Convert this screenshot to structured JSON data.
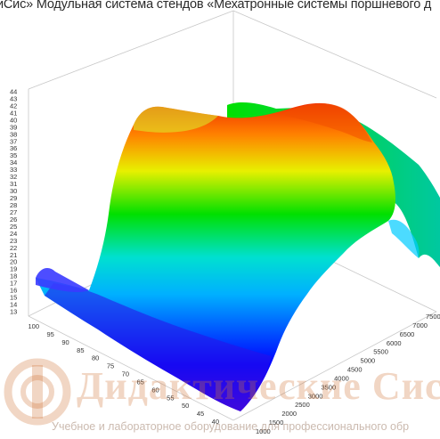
{
  "header": {
    "text": "иСис» Модульная система стендов «Мехатронные системы поршневого д"
  },
  "watermark": {
    "company": "Дидактические Систе",
    "tagline": "Учебное и лабораторное оборудование для профессионального обр"
  },
  "chart_data": {
    "type": "surface3d",
    "title": "",
    "zlim": [
      13,
      44
    ],
    "z_ticks": [
      13,
      14,
      15,
      16,
      17,
      18,
      19,
      20,
      21,
      22,
      23,
      24,
      25,
      26,
      27,
      28,
      29,
      30,
      31,
      32,
      33,
      34,
      35,
      36,
      37,
      38,
      39,
      40,
      41,
      42,
      43,
      44
    ],
    "x_ticks": [
      100,
      95,
      90,
      85,
      80,
      75,
      70,
      65,
      60,
      55,
      50,
      45,
      40
    ],
    "y_ticks": [
      1000,
      1500,
      2000,
      2500,
      3000,
      3500,
      4000,
      4500,
      5000,
      5500,
      6000,
      6500,
      7000,
      7500
    ],
    "colormap": [
      "#5a00d0",
      "#0000ff",
      "#00b0ff",
      "#00e0d0",
      "#00e000",
      "#e8f000",
      "#ff8000",
      "#f03000"
    ],
    "x_axis_values": [
      100,
      90,
      80,
      70,
      60,
      50,
      40
    ],
    "y_axis_values": [
      1000,
      2000,
      3000,
      4000,
      5000,
      6000,
      7000
    ],
    "z_values": [
      [
        18,
        26,
        34,
        40,
        41,
        40,
        36
      ],
      [
        17,
        23,
        31,
        38,
        41,
        42,
        38
      ],
      [
        16,
        21,
        28,
        36,
        40,
        43,
        40
      ],
      [
        15,
        19,
        25,
        33,
        39,
        42,
        39
      ],
      [
        14,
        17,
        22,
        29,
        36,
        41,
        37
      ],
      [
        14,
        16,
        20,
        26,
        33,
        38,
        34
      ],
      [
        14,
        15,
        18,
        23,
        30,
        35,
        31
      ]
    ]
  }
}
